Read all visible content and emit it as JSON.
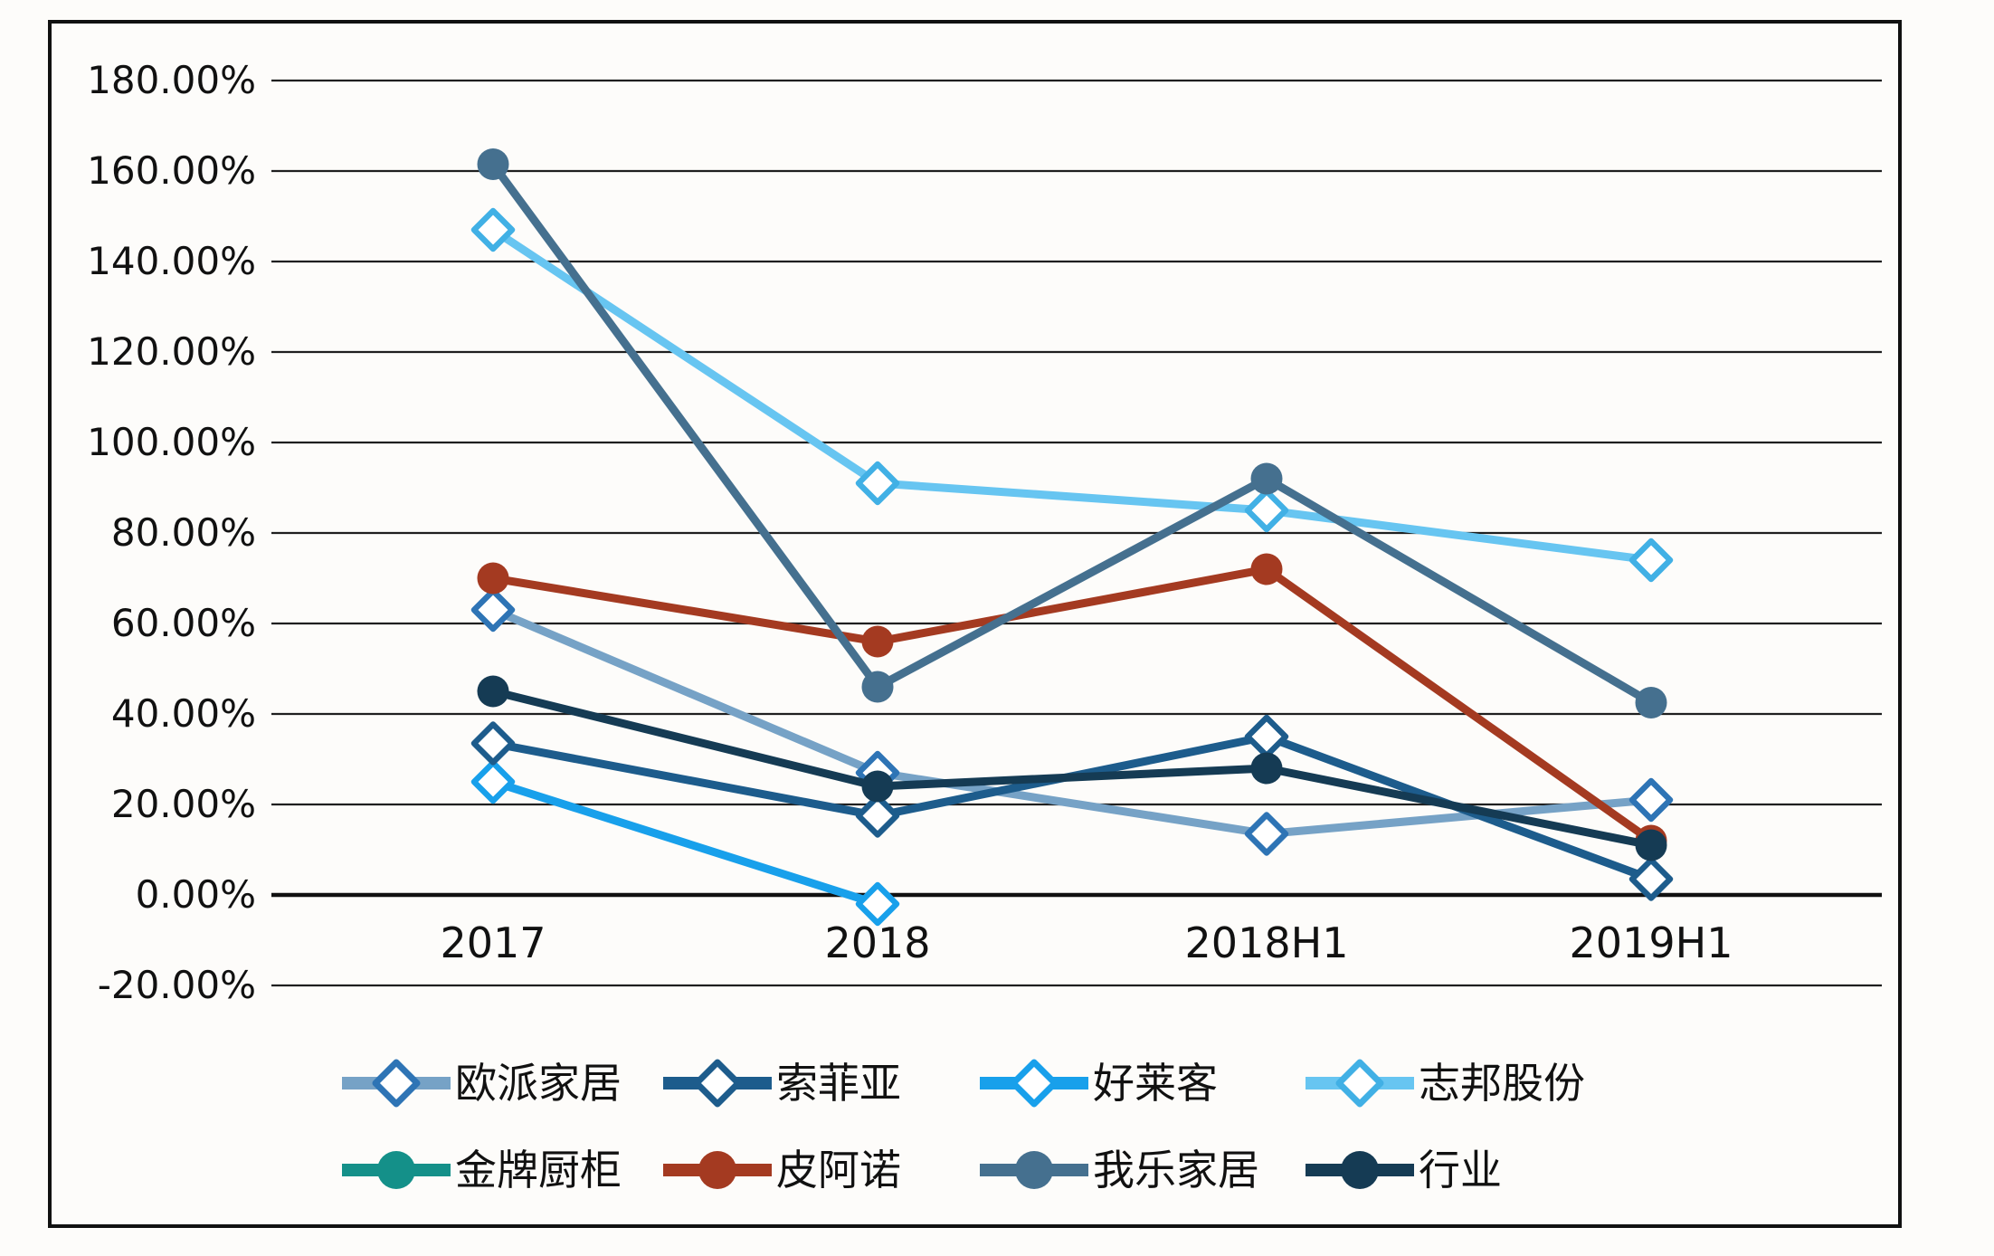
{
  "chart_data": {
    "type": "line",
    "title": "",
    "xlabel": "",
    "ylabel": "",
    "categories": [
      "2017",
      "2018",
      "2018H1",
      "2019H1"
    ],
    "y_axis": {
      "min": -20,
      "max": 180,
      "step": 20,
      "format": "percent",
      "tick_labels": [
        "180.00%",
        "160.00%",
        "140.00%",
        "120.00%",
        "100.00%",
        "80.00%",
        "60.00%",
        "40.00%",
        "20.00%",
        "0.00%",
        "-20.00%"
      ]
    },
    "grid": true,
    "legend_position": "bottom",
    "series": [
      {
        "key": "oppein-home",
        "name": "欧派家居",
        "marker": "diamond-open",
        "color": "#76A2C6",
        "marker_color": "#2E74B5",
        "values": [
          63,
          27,
          13.5,
          21
        ]
      },
      {
        "key": "sofia",
        "name": "索菲亚",
        "marker": "diamond-open",
        "color": "#1D5C8C",
        "marker_color": "#1D5C8C",
        "values": [
          33.5,
          17.5,
          35,
          3.5
        ]
      },
      {
        "key": "holike",
        "name": "好莱客",
        "marker": "diamond-open",
        "color": "#18A0EB",
        "marker_color": "#18A0EB",
        "values": [
          25,
          -2,
          null,
          null
        ]
      },
      {
        "key": "zbom-share",
        "name": "志邦股份",
        "marker": "diamond-open",
        "color": "#67C5F1",
        "marker_color": "#41B0E5",
        "values": [
          147,
          91,
          85,
          74
        ]
      },
      {
        "key": "goldenhome",
        "name": "金牌厨柜",
        "marker": "circle",
        "color": "#149089",
        "marker_color": "#149089",
        "values": [
          null,
          null,
          null,
          null
        ]
      },
      {
        "key": "piano",
        "name": "皮阿诺",
        "marker": "circle",
        "color": "#A43A21",
        "marker_color": "#A43A21",
        "values": [
          70,
          56,
          72,
          12
        ]
      },
      {
        "key": "wole-home",
        "name": "我乐家居",
        "marker": "circle",
        "color": "#45708F",
        "marker_color": "#45708F",
        "values": [
          161.5,
          46,
          92,
          42.5
        ]
      },
      {
        "key": "industry",
        "name": "行业",
        "marker": "circle",
        "color": "#153B54",
        "marker_color": "#153B54",
        "values": [
          45,
          24,
          28,
          11
        ]
      }
    ],
    "draw_order": [
      "zbom-share",
      "holike",
      "oppein-home",
      "sofia",
      "goldenhome",
      "piano",
      "wole-home",
      "industry"
    ],
    "colors": {
      "gridline": "#1F1F1F",
      "zero_axis": "#111111",
      "border": "#111111",
      "background": "#FDFCFA",
      "marker_fill": "#FFFFFF",
      "text": "#111111"
    }
  }
}
